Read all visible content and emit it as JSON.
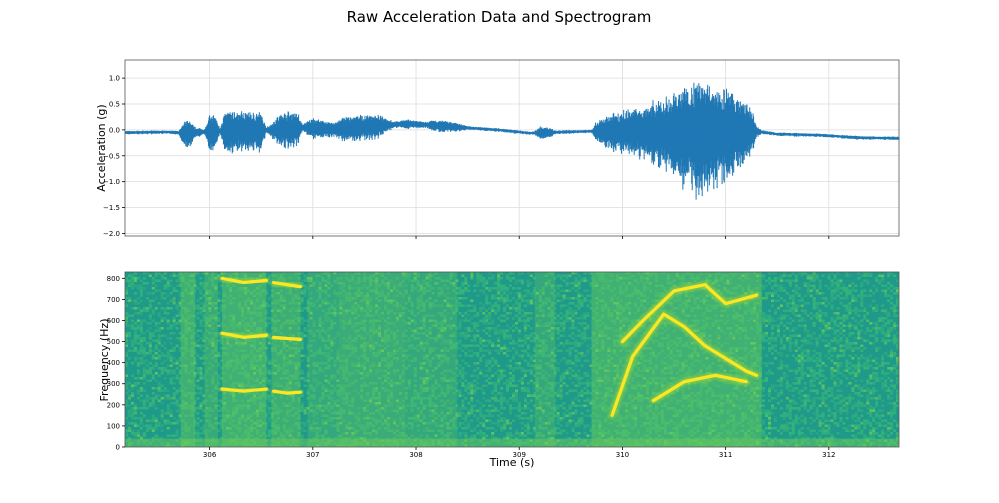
{
  "figure": {
    "title": "Raw Acceleration Data and Spectrogram"
  },
  "chart_data": [
    {
      "type": "line",
      "ylabel": "Acceleration (g)",
      "xlim": [
        305.18,
        312.68
      ],
      "ylim": [
        -2.05,
        1.35
      ],
      "y_ticks": [
        -2.0,
        -1.5,
        -1.0,
        -0.5,
        0.0,
        0.5,
        1.0
      ],
      "y_tick_labels": [
        "−2.0",
        "−1.5",
        "−1.0",
        "−0.5",
        "0.0",
        "0.5",
        "1.0"
      ],
      "x_ticks": [
        306,
        307,
        308,
        309,
        310,
        311,
        312
      ],
      "grid": true,
      "line_color": "#1f77b4",
      "baseline": [
        [
          305.18,
          -0.05
        ],
        [
          305.6,
          -0.04
        ],
        [
          305.75,
          -0.06
        ],
        [
          306.0,
          -0.03
        ],
        [
          306.3,
          0.0
        ],
        [
          306.6,
          0.0
        ],
        [
          306.9,
          0.05
        ],
        [
          307.2,
          0.02
        ],
        [
          307.6,
          0.08
        ],
        [
          307.9,
          0.12
        ],
        [
          308.2,
          0.09
        ],
        [
          308.5,
          0.04
        ],
        [
          308.8,
          0.0
        ],
        [
          309.1,
          -0.06
        ],
        [
          309.4,
          -0.04
        ],
        [
          309.8,
          -0.02
        ],
        [
          310.1,
          0.0
        ],
        [
          310.4,
          -0.02
        ],
        [
          310.8,
          -0.05
        ],
        [
          311.2,
          0.0
        ],
        [
          311.5,
          -0.08
        ],
        [
          311.9,
          -0.1
        ],
        [
          312.3,
          -0.15
        ],
        [
          312.68,
          -0.16
        ]
      ],
      "envelope": [
        [
          305.18,
          0.03
        ],
        [
          305.7,
          0.03
        ],
        [
          305.75,
          0.2
        ],
        [
          305.8,
          0.25
        ],
        [
          305.85,
          0.1
        ],
        [
          305.95,
          0.05
        ],
        [
          306.0,
          0.3
        ],
        [
          306.05,
          0.3
        ],
        [
          306.1,
          0.05
        ],
        [
          306.15,
          0.35
        ],
        [
          306.3,
          0.35
        ],
        [
          306.5,
          0.32
        ],
        [
          306.55,
          0.05
        ],
        [
          306.7,
          0.3
        ],
        [
          306.85,
          0.3
        ],
        [
          306.9,
          0.05
        ],
        [
          307.0,
          0.18
        ],
        [
          307.1,
          0.15
        ],
        [
          307.2,
          0.12
        ],
        [
          307.3,
          0.2
        ],
        [
          307.6,
          0.22
        ],
        [
          307.8,
          0.05
        ],
        [
          307.9,
          0.08
        ],
        [
          308.1,
          0.05
        ],
        [
          308.2,
          0.1
        ],
        [
          308.4,
          0.08
        ],
        [
          308.5,
          0.03
        ],
        [
          309.15,
          0.03
        ],
        [
          309.2,
          0.12
        ],
        [
          309.3,
          0.08
        ],
        [
          309.35,
          0.03
        ],
        [
          309.7,
          0.03
        ],
        [
          309.75,
          0.18
        ],
        [
          309.9,
          0.3
        ],
        [
          310.2,
          0.45
        ],
        [
          310.4,
          0.6
        ],
        [
          310.6,
          0.85
        ],
        [
          310.75,
          1.0
        ],
        [
          310.9,
          0.9
        ],
        [
          311.1,
          0.65
        ],
        [
          311.25,
          0.4
        ],
        [
          311.3,
          0.1
        ],
        [
          311.35,
          0.03
        ],
        [
          312.68,
          0.03
        ]
      ]
    },
    {
      "type": "heatmap",
      "xlabel": "Time (s)",
      "ylabel": "Frequency (Hz)",
      "xlim": [
        305.18,
        312.68
      ],
      "ylim": [
        0,
        830
      ],
      "y_ticks": [
        0,
        100,
        200,
        300,
        400,
        500,
        600,
        700,
        800
      ],
      "x_ticks": [
        306,
        307,
        308,
        309,
        310,
        311,
        312
      ],
      "colormap": [
        "#1f9a8a",
        "#38b977",
        "#6ece58",
        "#b5de2b",
        "#fde725"
      ],
      "events": [
        [
          305.72,
          305.86,
          0.9
        ],
        [
          305.95,
          306.08,
          0.7
        ],
        [
          306.12,
          306.55,
          0.95
        ],
        [
          306.6,
          306.88,
          0.85
        ],
        [
          306.95,
          307.25,
          0.55
        ],
        [
          307.25,
          307.9,
          0.75
        ],
        [
          307.9,
          308.4,
          0.6
        ],
        [
          309.15,
          309.35,
          0.6
        ],
        [
          309.7,
          311.35,
          0.95
        ]
      ],
      "contours": [
        [
          [
            306.12,
            275
          ],
          [
            306.33,
            265
          ],
          [
            306.55,
            275
          ]
        ],
        [
          [
            306.62,
            265
          ],
          [
            306.75,
            255
          ],
          [
            306.88,
            260
          ]
        ],
        [
          [
            306.12,
            540
          ],
          [
            306.33,
            520
          ],
          [
            306.55,
            530
          ]
        ],
        [
          [
            306.62,
            520
          ],
          [
            306.88,
            510
          ]
        ],
        [
          [
            306.12,
            800
          ],
          [
            306.33,
            780
          ],
          [
            306.55,
            790
          ]
        ],
        [
          [
            306.62,
            780
          ],
          [
            306.88,
            760
          ]
        ],
        [
          [
            309.9,
            150
          ],
          [
            310.1,
            430
          ],
          [
            310.4,
            630
          ],
          [
            310.6,
            570
          ],
          [
            310.8,
            480
          ],
          [
            311.0,
            420
          ],
          [
            311.2,
            360
          ],
          [
            311.3,
            340
          ]
        ],
        [
          [
            310.3,
            220
          ],
          [
            310.6,
            310
          ],
          [
            310.9,
            340
          ],
          [
            311.2,
            310
          ]
        ],
        [
          [
            310.0,
            500
          ],
          [
            310.2,
            600
          ],
          [
            310.5,
            740
          ],
          [
            310.8,
            770
          ],
          [
            311.0,
            680
          ],
          [
            311.3,
            720
          ]
        ]
      ]
    }
  ]
}
